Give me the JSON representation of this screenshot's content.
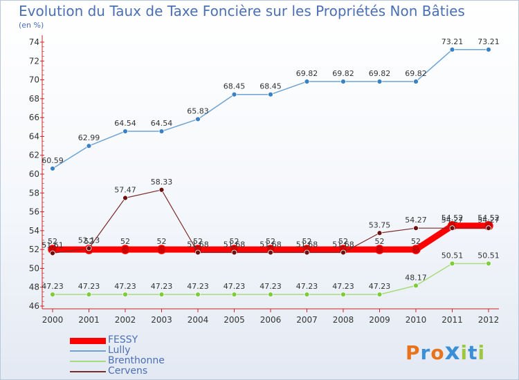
{
  "chart_data": {
    "type": "line",
    "title": "Evolution du Taux de Taxe Foncière sur les Propriétés Non Bâties",
    "ylabel": "(en %)",
    "xlabel": "",
    "ylim": [
      46,
      74
    ],
    "yticks": [
      46,
      48,
      50,
      52,
      54,
      56,
      58,
      60,
      62,
      64,
      66,
      68,
      70,
      72,
      74
    ],
    "categories": [
      "2000",
      "2001",
      "2002",
      "2003",
      "2004",
      "2005",
      "2006",
      "2007",
      "2008",
      "2009",
      "2010",
      "2011",
      "2012"
    ],
    "series": [
      {
        "name": "FESSY",
        "color": "#ff0000",
        "values": [
          52,
          52,
          52,
          52,
          52,
          52,
          52,
          52,
          52,
          52,
          52,
          54.52,
          54.52
        ],
        "labels": [
          "52",
          "52",
          "52",
          "52",
          "52",
          "52",
          "52",
          "52",
          "52",
          "52",
          "52",
          "54.52",
          "54.52"
        ]
      },
      {
        "name": "Lully",
        "color": "#6aa3d5",
        "values": [
          60.59,
          62.99,
          64.54,
          64.54,
          65.83,
          68.45,
          68.45,
          69.82,
          69.82,
          69.82,
          69.82,
          73.21,
          73.21
        ],
        "labels": [
          "60.59",
          "62.99",
          "64.54",
          "64.54",
          "65.83",
          "68.45",
          "68.45",
          "69.82",
          "69.82",
          "69.82",
          "69.82",
          "73.21",
          "73.21"
        ]
      },
      {
        "name": "Brenthonne",
        "color": "#a6dc7c",
        "values": [
          47.23,
          47.23,
          47.23,
          47.23,
          47.23,
          47.23,
          47.23,
          47.23,
          47.23,
          47.23,
          48.17,
          50.51,
          50.51
        ],
        "labels": [
          "47.23",
          "47.23",
          "47.23",
          "47.23",
          "47.23",
          "47.23",
          "47.23",
          "47.23",
          "47.23",
          "47.23",
          "48.17",
          "50.51",
          "50.51"
        ]
      },
      {
        "name": "Cervens",
        "color": "#7a2a2a",
        "values": [
          51.61,
          52.13,
          57.47,
          58.33,
          51.68,
          51.68,
          51.68,
          51.68,
          51.68,
          53.75,
          54.27,
          54.27,
          54.27
        ],
        "labels": [
          "51.61",
          "52.13",
          "57.47",
          "58.33",
          "51.68",
          "51.68",
          "51.68",
          "51.68",
          "51.68",
          "53.75",
          "54.27",
          "54.27",
          "54.27"
        ]
      }
    ],
    "grid": false,
    "legend_position": "bottom-left"
  },
  "logo": {
    "text": "Proxiti",
    "letters": [
      "P",
      "r",
      "o",
      "x",
      "i",
      "t",
      "i"
    ],
    "colors": [
      "#e8731c",
      "#3a8fd6",
      "#e8731c",
      "#3a8fd6",
      "#9dc73c",
      "#3a8fd6",
      "#9dc73c"
    ]
  }
}
